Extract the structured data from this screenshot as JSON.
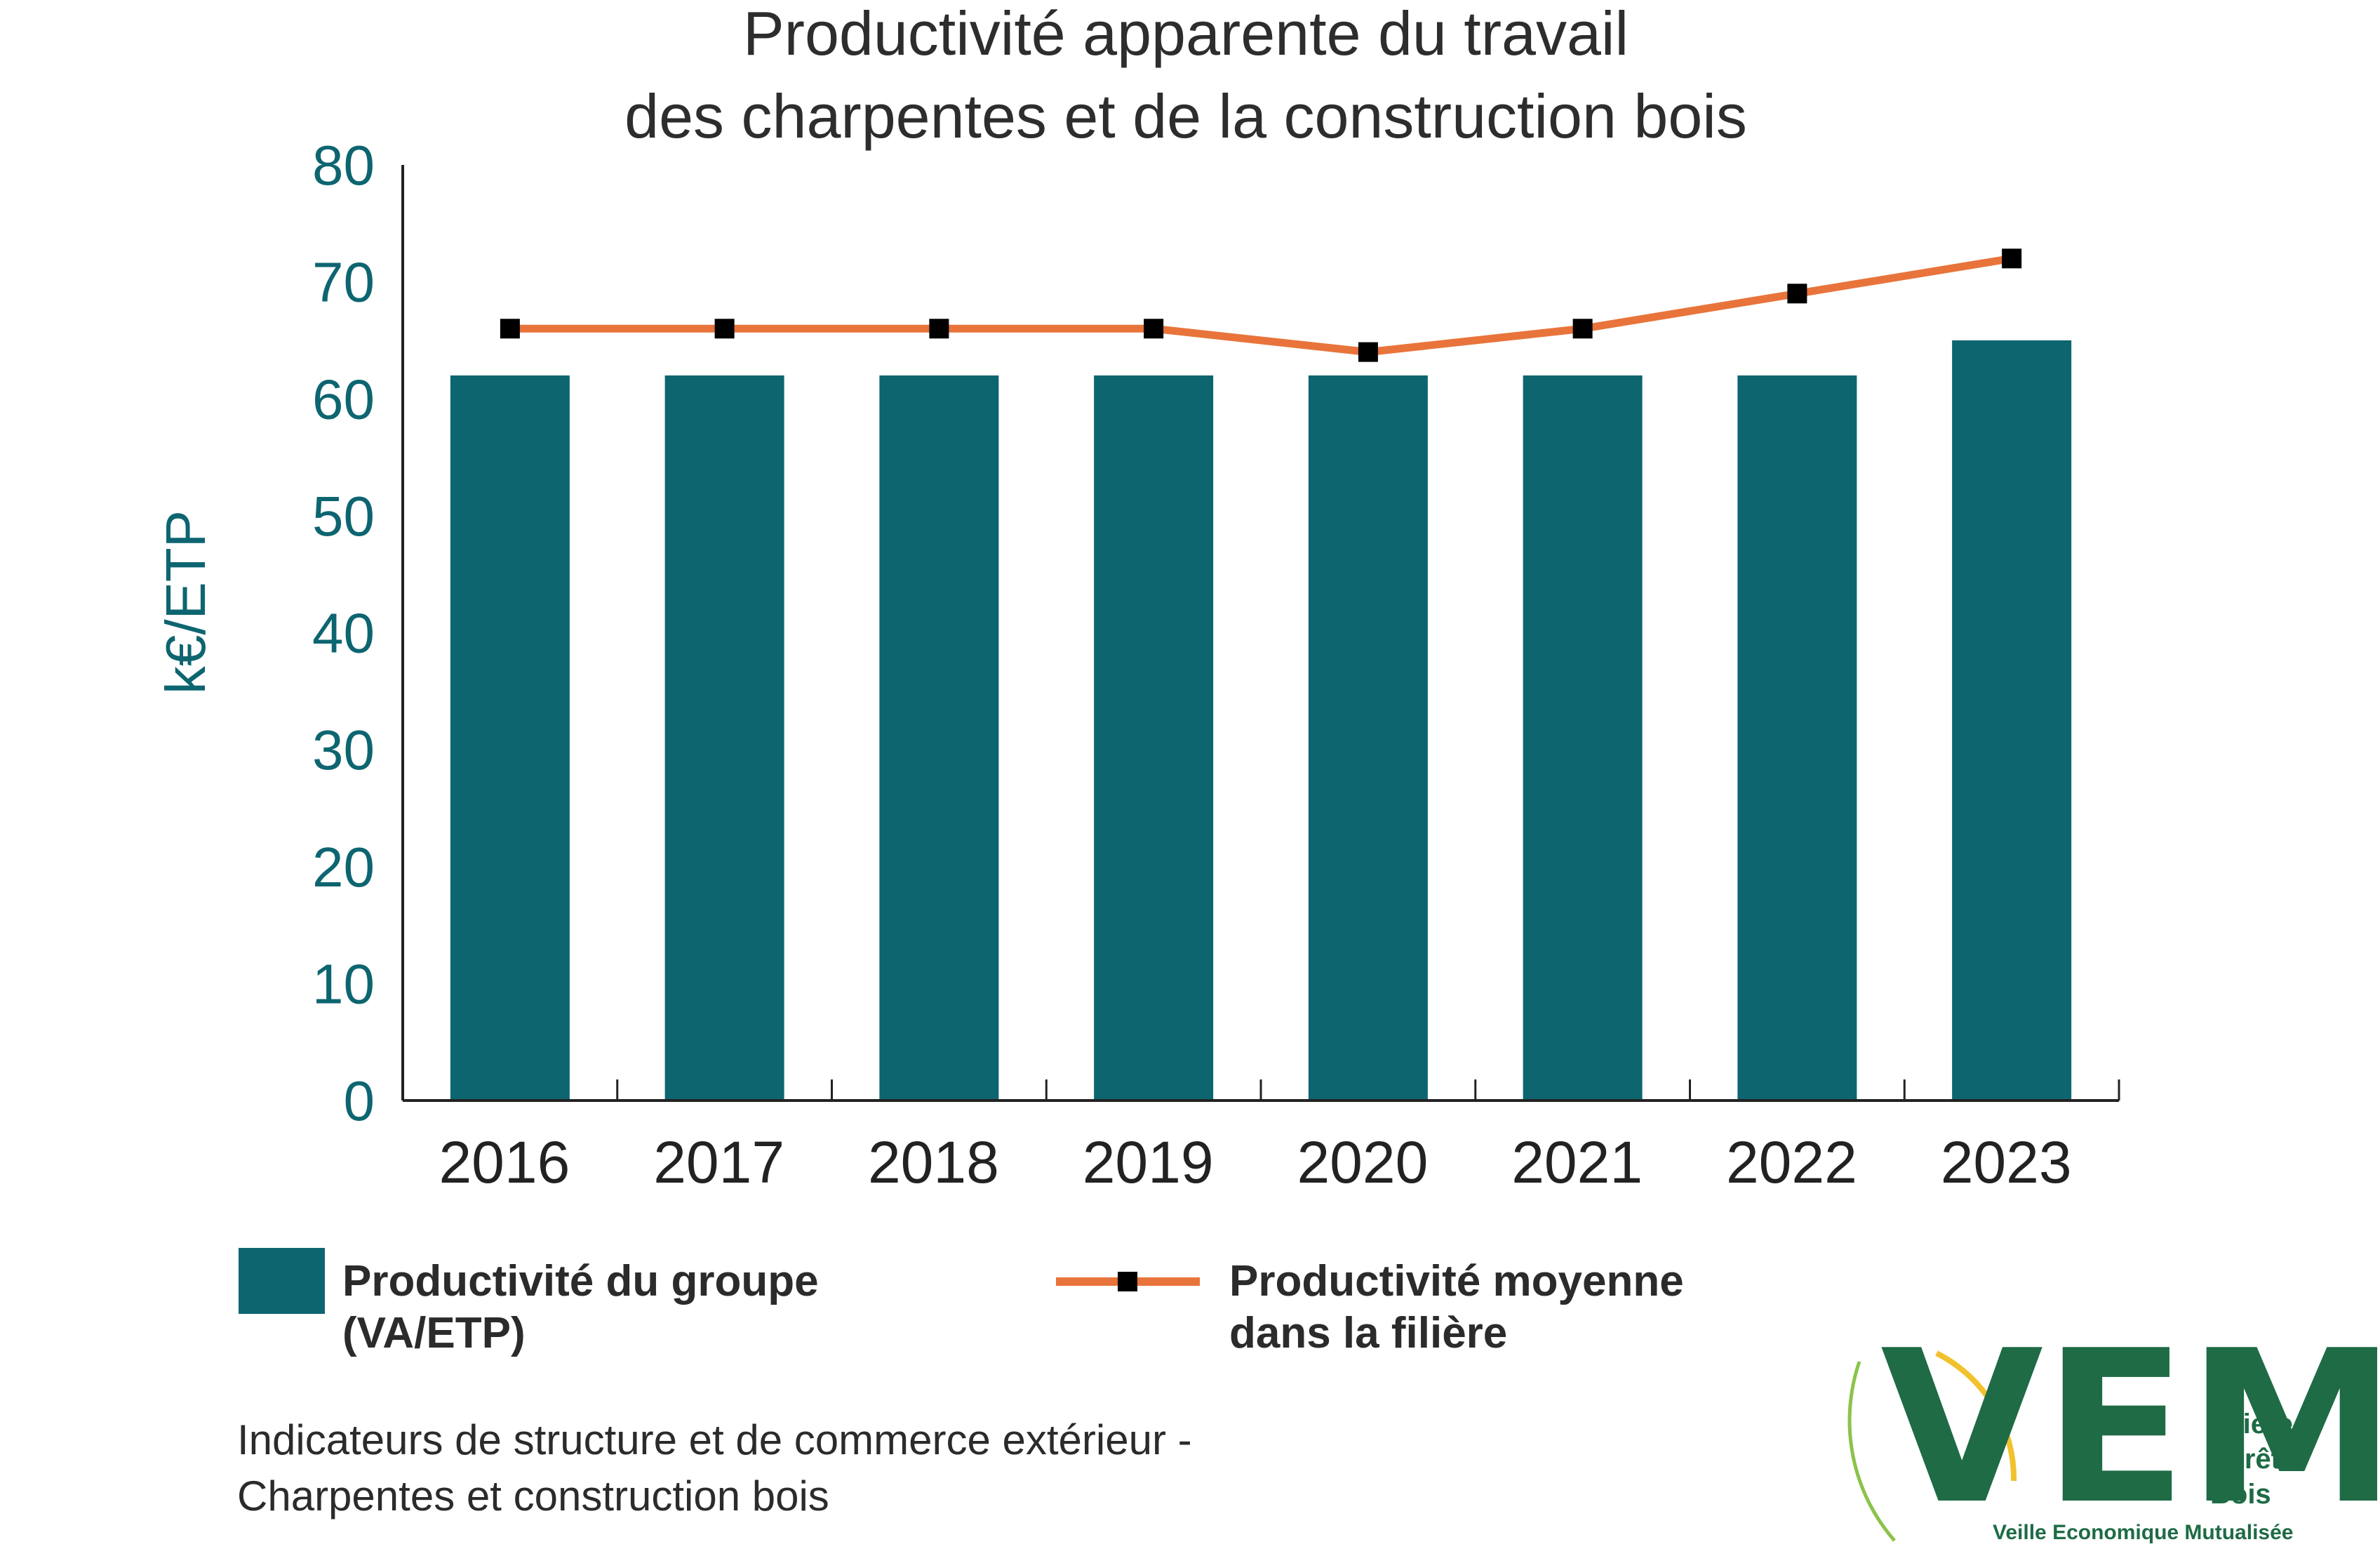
{
  "chart_data": {
    "type": "bar",
    "title_line1": "Productivité apparente du travail",
    "title_line2": "des charpentes et de la construction bois",
    "ylabel": "k€/ETP",
    "xlabel": "",
    "ylim": [
      0,
      80
    ],
    "yticks": [
      0,
      10,
      20,
      30,
      40,
      50,
      60,
      70,
      80
    ],
    "grid": false,
    "categories": [
      "2016",
      "2017",
      "2018",
      "2019",
      "2020",
      "2021",
      "2022",
      "2023"
    ],
    "series": [
      {
        "name": "Productivité du groupe (VA/ETP)",
        "type": "bar",
        "color": "#0d6570",
        "values": [
          62,
          62,
          62,
          62,
          62,
          62,
          62,
          65
        ]
      },
      {
        "name": "Productivité moyenne dans la filière",
        "type": "line",
        "color": "#e8743b",
        "marker_color": "#000000",
        "values": [
          66,
          66,
          66,
          66,
          64,
          66,
          69,
          72
        ]
      }
    ],
    "legend": {
      "placement": "bottom",
      "bar_label_line1": "Productivité du groupe",
      "bar_label_line2": "(VA/ETP)",
      "line_label_line1": "Productivité moyenne",
      "line_label_line2": "dans la filière"
    }
  },
  "source": {
    "line1": "Indicateurs de structure et de commerce extérieur -",
    "line2": "Charpentes et construction bois"
  },
  "logo": {
    "letters": "VEM",
    "line1": "Filière",
    "line2": "Forêt",
    "line3": "Bois",
    "subtitle": "Veille Economique Mutualisée",
    "color": "#1e6b45",
    "arc_color": "#f2c12e"
  }
}
